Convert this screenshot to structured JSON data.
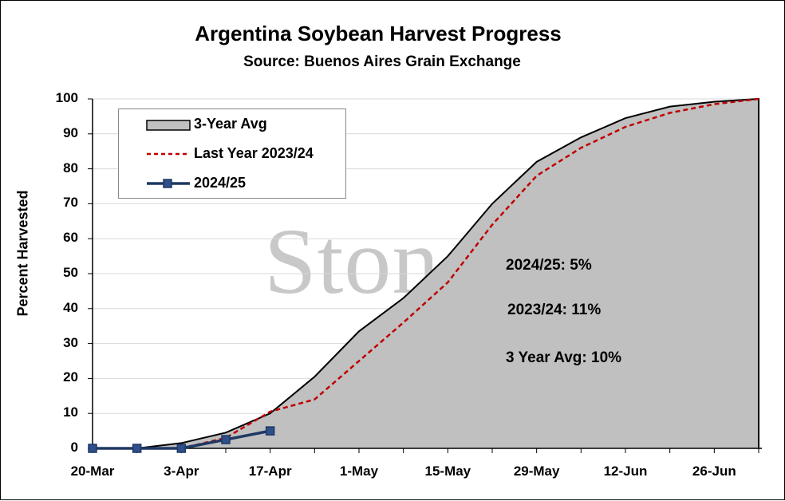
{
  "chart_data": {
    "type": "area",
    "title": "Argentina Soybean Harvest Progress",
    "subtitle": "Source: Buenos Aires Grain Exchange",
    "ylabel": "Percent Harvested",
    "xlabel": "",
    "ylim": [
      0,
      100
    ],
    "y_ticks": [
      "0",
      "10",
      "20",
      "30",
      "40",
      "50",
      "60",
      "70",
      "80",
      "90",
      "100"
    ],
    "x_ticks": [
      "20-Mar",
      "3-Apr",
      "17-Apr",
      "1-May",
      "15-May",
      "29-May",
      "12-Jun",
      "26-Jun"
    ],
    "x": [
      "20-Mar",
      "27-Mar",
      "3-Apr",
      "10-Apr",
      "17-Apr",
      "24-Apr",
      "1-May",
      "8-May",
      "15-May",
      "22-May",
      "29-May",
      "5-Jun",
      "12-Jun",
      "19-Jun",
      "26-Jun",
      "3-Jul"
    ],
    "grid": true,
    "legend_position": "top-left",
    "series": [
      {
        "name": "3-Year Avg",
        "style": "area",
        "color": "#c0c0c0",
        "edge_color": "#000000",
        "values": [
          0,
          0,
          1.5,
          4.5,
          10,
          20.5,
          33.5,
          43,
          55,
          70,
          82,
          89,
          94.5,
          97.8,
          99.2,
          100
        ]
      },
      {
        "name": "Last Year 2023/24",
        "style": "dashed",
        "color": "#c00000",
        "values": [
          0,
          0,
          0,
          3,
          10.5,
          14,
          25,
          36,
          47.5,
          64,
          78,
          86,
          92,
          96,
          98.5,
          100
        ]
      },
      {
        "name": "2024/25",
        "style": "line-marker",
        "color": "#1f3864",
        "values": [
          0,
          0,
          0,
          2.5,
          5,
          null,
          null,
          null,
          null,
          null,
          null,
          null,
          null,
          null,
          null,
          null
        ]
      }
    ],
    "annotations": [
      "2024/25: 5%",
      "2023/24: 11%",
      "3 Year Avg: 10%"
    ],
    "watermark": "StoneX"
  }
}
